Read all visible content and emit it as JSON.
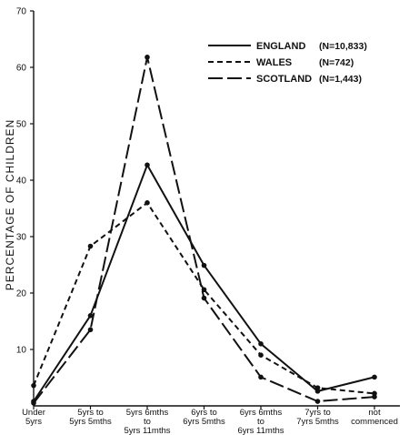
{
  "chart_data": {
    "type": "line",
    "ylabel": "PERCENTAGE OF CHILDREN",
    "xlabel": "",
    "ylim": [
      0,
      70
    ],
    "yticks": [
      10,
      20,
      30,
      40,
      50,
      60,
      70
    ],
    "grid": false,
    "legend_position": "top-right",
    "categories": [
      [
        "Under",
        "5yrs"
      ],
      [
        "5yrs to",
        "5yrs 5mths"
      ],
      [
        "5yrs 6mths",
        "to",
        "5yrs 11mths"
      ],
      [
        "6yrs to",
        "6yrs 5mths"
      ],
      [
        "6yrs 6mths",
        "to",
        "6yrs 11mths"
      ],
      [
        "7yrs to",
        "7yrs 5mths"
      ],
      [
        "not",
        "commenced"
      ]
    ],
    "series": [
      {
        "name": "ENGLAND",
        "n": "(N=10,833)",
        "style": "solid",
        "values": [
          0.8,
          16.0,
          42.7,
          24.9,
          11.0,
          2.6,
          5.1
        ]
      },
      {
        "name": "WALES",
        "n": "(N=742)",
        "style": "dashed",
        "values": [
          3.6,
          28.3,
          36.0,
          20.6,
          9.0,
          3.2,
          2.2
        ]
      },
      {
        "name": "SCOTLAND",
        "n": "(N=1,443)",
        "style": "longdash",
        "values": [
          0.5,
          13.5,
          61.8,
          19.1,
          5.1,
          0.8,
          1.6
        ]
      }
    ]
  }
}
